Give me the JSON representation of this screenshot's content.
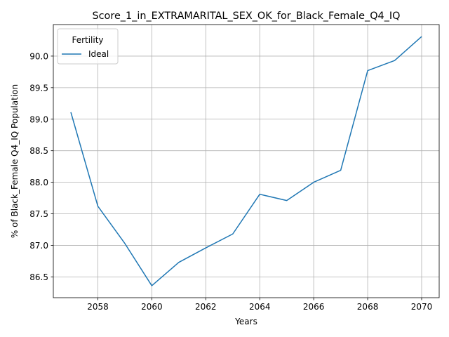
{
  "chart_data": {
    "type": "line",
    "title": "Score_1_in_EXTRAMARITAL_SEX_OK_for_Black_Female_Q4_IQ",
    "xlabel": "Years",
    "ylabel": "% of Black_Female Q4_IQ Population",
    "xlim": [
      2056.35,
      2070.65
    ],
    "ylim": [
      86.17,
      90.5
    ],
    "xticks": [
      2058,
      2060,
      2062,
      2064,
      2066,
      2068,
      2070
    ],
    "yticks": [
      86.5,
      87.0,
      87.5,
      88.0,
      88.5,
      89.0,
      89.5,
      90.0
    ],
    "grid": true,
    "legend": {
      "title": "Fertility",
      "placement": "upper-left"
    },
    "series": [
      {
        "name": "Ideal",
        "color": "#1f77b4",
        "x": [
          2057,
          2058,
          2059,
          2060,
          2061,
          2062,
          2063,
          2064,
          2065,
          2066,
          2067,
          2068,
          2069,
          2070
        ],
        "y": [
          89.11,
          87.62,
          87.03,
          86.36,
          86.73,
          86.96,
          87.18,
          87.81,
          87.71,
          88.0,
          88.19,
          89.77,
          89.93,
          90.31
        ]
      }
    ]
  }
}
